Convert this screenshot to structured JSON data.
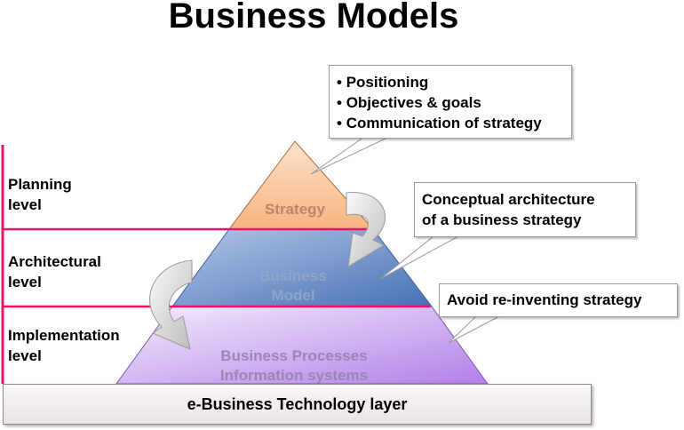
{
  "title": "Business Models",
  "levels": {
    "planning": [
      "Planning",
      "level"
    ],
    "architectural": [
      "Architectural",
      "level"
    ],
    "implementation": [
      "Implementation",
      "level"
    ]
  },
  "pyramid": {
    "top": "Strategy",
    "middle": [
      "Business",
      "Model"
    ],
    "bottom": [
      "Business Processes",
      "Information systems"
    ]
  },
  "callouts": {
    "strategy_items": [
      "Positioning",
      "Objectives & goals",
      "Communication of strategy"
    ],
    "architecture": [
      "Conceptual architecture",
      "of a business strategy"
    ],
    "implementation": "Avoid re-inventing strategy"
  },
  "base_layer": "e-Business Technology layer",
  "colors": {
    "divider": "#e8146a",
    "strategy_fill": "#f9c396",
    "model_fill": "#5f85c2",
    "process_fill": "#cba8ef"
  }
}
